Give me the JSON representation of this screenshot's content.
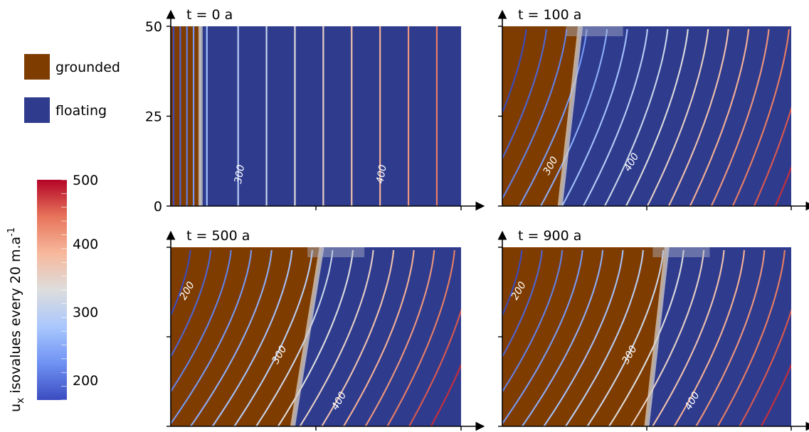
{
  "legend": {
    "items": [
      {
        "label": "grounded",
        "color": "#7f3c00"
      },
      {
        "label": "floating",
        "color": "#2f3c8e"
      }
    ]
  },
  "colorbar": {
    "title": "u",
    "title_subscript": "x",
    "title_rest": " isovalues every 20 m.a",
    "title_superscript": "-1",
    "ticks": [
      "500",
      "400",
      "300",
      "200"
    ],
    "range": [
      180,
      500
    ],
    "stops": [
      "#3b4cc0",
      "#6f92f3",
      "#aac7fd",
      "#dddddd",
      "#f7b89c",
      "#e7745b",
      "#b40426"
    ]
  },
  "chart_data": [
    {
      "type": "contour",
      "title": "t = 0 a",
      "y_ticks": [
        "0",
        "25",
        "50"
      ],
      "ylim": [
        0,
        50
      ],
      "contour_labels": [
        "300",
        "400"
      ],
      "grounding_line_fraction": 0.1,
      "contour_interval": 20
    },
    {
      "type": "contour",
      "title": "t = 100 a",
      "contour_labels": [
        "300",
        "400"
      ],
      "contour_interval": 20
    },
    {
      "type": "contour",
      "title": "t = 500 a",
      "contour_labels": [
        "200",
        "300",
        "400"
      ],
      "contour_interval": 20
    },
    {
      "type": "contour",
      "title": "t = 900 a",
      "contour_labels": [
        "200",
        "300",
        "400"
      ],
      "contour_interval": 20
    }
  ]
}
